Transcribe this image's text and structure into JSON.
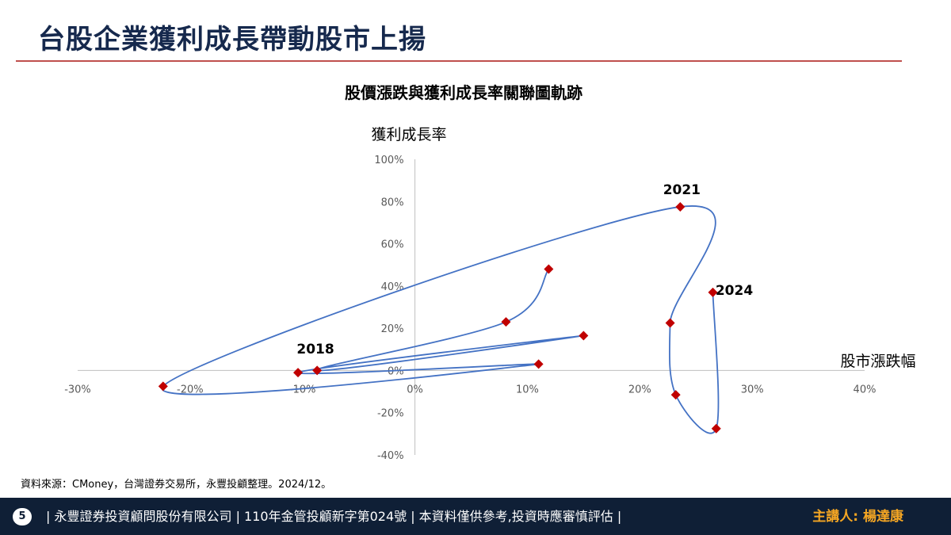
{
  "page": {
    "title": "台股企業獲利成長帶動股市上揚",
    "source": "資料來源：CMoney，台灣證券交易所，永豐投顧整理。2024/12。",
    "footer": {
      "page_number": "5",
      "text": "| 永豐證券投資顧問股份有限公司 | 110年金管投顧新字第024號 | 本資料僅供參考,投資時應審慎評估 |",
      "speaker": "主講人: 楊達康"
    }
  },
  "colors": {
    "title": "#16294d",
    "rule": "#c0504d",
    "line": "#4472c4",
    "marker": "#c00000",
    "footer_bg": "#0f1f36",
    "speaker": "#f5a623"
  },
  "chart_data": {
    "type": "scatter",
    "title": "股價漲跌與獲利成長率關聯圖軌跡",
    "xlabel": "股市漲跌幅",
    "ylabel": "獲利成長率",
    "xlim": [
      -0.3,
      0.4
    ],
    "ylim": [
      -0.4,
      1.0
    ],
    "x_ticks": [
      -0.3,
      -0.2,
      -0.1,
      0.0,
      0.1,
      0.2,
      0.3,
      0.4
    ],
    "x_tick_labels": [
      "-30%",
      "-20%",
      "-10%",
      "0%",
      "10%",
      "20%",
      "30%",
      "40%"
    ],
    "y_ticks": [
      -0.4,
      -0.2,
      0.0,
      0.2,
      0.4,
      0.6,
      0.8,
      1.0
    ],
    "y_tick_labels": [
      "-40%",
      "-20%",
      "0%",
      "20%",
      "40%",
      "60%",
      "80%",
      "100%"
    ],
    "grid": false,
    "points": [
      {
        "x": 0.119,
        "y": 0.48,
        "label": ""
      },
      {
        "x": 0.081,
        "y": 0.23,
        "label": ""
      },
      {
        "x": -0.087,
        "y": 0.0,
        "label": ""
      },
      {
        "x": 0.15,
        "y": 0.165,
        "label": ""
      },
      {
        "x": -0.104,
        "y": -0.01,
        "label": "2018"
      },
      {
        "x": 0.11,
        "y": 0.03,
        "label": ""
      },
      {
        "x": -0.224,
        "y": -0.075,
        "label": ""
      },
      {
        "x": 0.236,
        "y": 0.775,
        "label": "2021"
      },
      {
        "x": 0.227,
        "y": 0.225,
        "label": ""
      },
      {
        "x": 0.232,
        "y": -0.115,
        "label": ""
      },
      {
        "x": 0.268,
        "y": -0.275,
        "label": ""
      },
      {
        "x": 0.265,
        "y": 0.37,
        "label": "2024"
      }
    ]
  }
}
